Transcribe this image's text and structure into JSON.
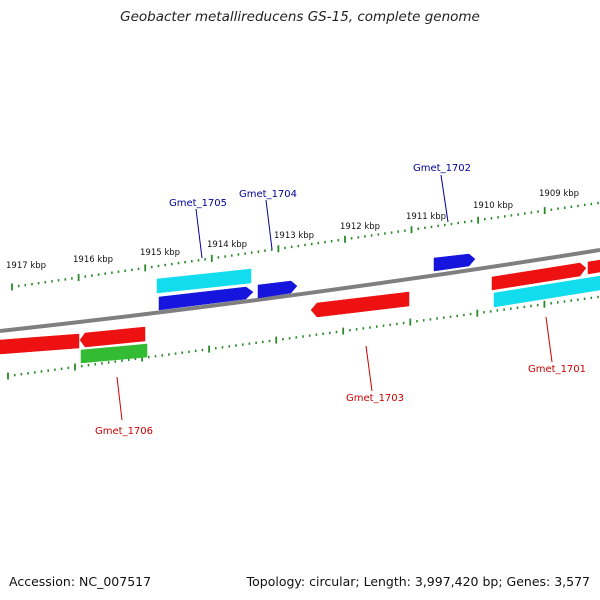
{
  "title": "Geobacter metallireducens GS-15, complete genome",
  "footer": {
    "accession": "Accession: NC_007517",
    "info": "Topology: circular; Length: 3,997,420 bp; Genes: 3,577"
  },
  "colors": {
    "backbone": "#7f7f7f",
    "tick": "#2a8a2a",
    "red_gene": "#ee1111",
    "blue_gene": "#1515dd",
    "cyan_gene": "#11ddee",
    "green_gene": "#33bb33",
    "label_red": "#cc0000",
    "label_blue": "#000099"
  },
  "ruler_labels": [
    "1917 kbp",
    "1916 kbp",
    "1915 kbp",
    "1914 kbp",
    "1913 kbp",
    "1912 kbp",
    "1911 kbp",
    "1910 kbp",
    "1909 kbp"
  ],
  "genes": [
    {
      "label": "Gmet_1701",
      "color": "red_gene"
    },
    {
      "label": "Gmet_1702",
      "color": "blue_gene"
    },
    {
      "label": "Gmet_1703",
      "color": "red_gene"
    },
    {
      "label": "Gmet_1704",
      "color": "blue_gene"
    },
    {
      "label": "Gmet_1705",
      "color": "blue_gene"
    },
    {
      "label": "Gmet_1706",
      "color": "red_gene"
    }
  ]
}
